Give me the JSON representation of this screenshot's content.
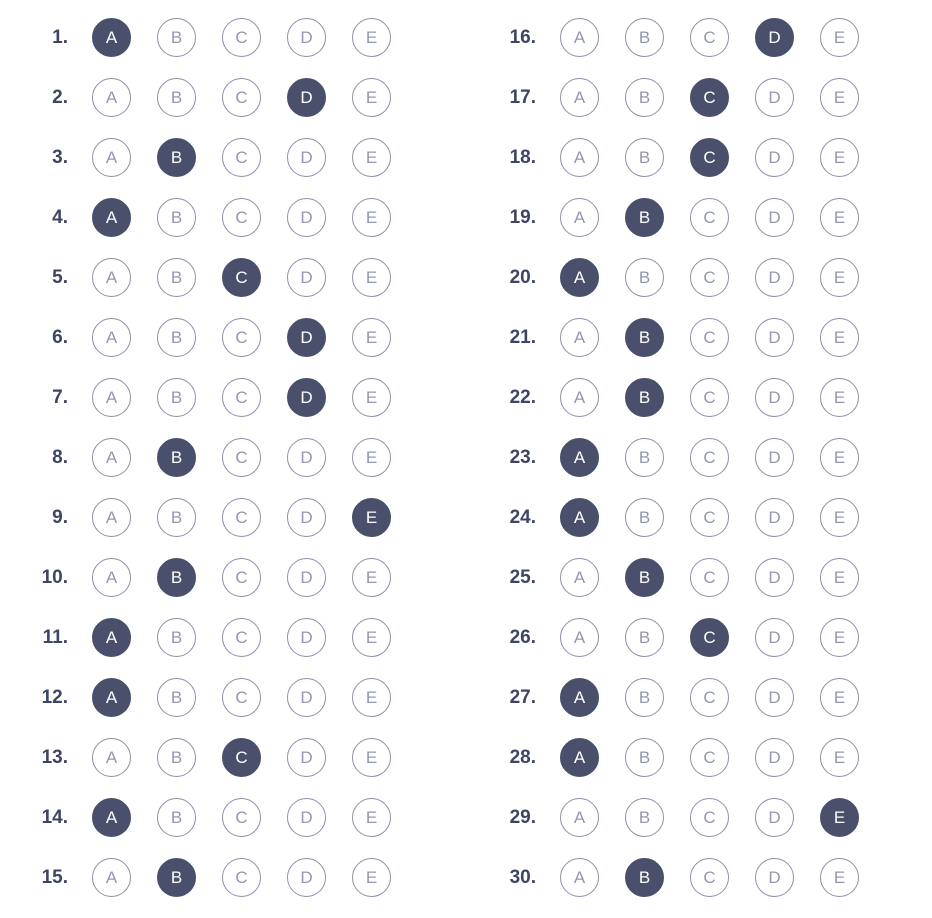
{
  "answer_sheet": {
    "choice_letters": [
      "A",
      "B",
      "C",
      "D",
      "E"
    ],
    "columns": [
      {
        "questions": [
          {
            "label": "1.",
            "selected": "A"
          },
          {
            "label": "2.",
            "selected": "D"
          },
          {
            "label": "3.",
            "selected": "B"
          },
          {
            "label": "4.",
            "selected": "A"
          },
          {
            "label": "5.",
            "selected": "C"
          },
          {
            "label": "6.",
            "selected": "D"
          },
          {
            "label": "7.",
            "selected": "D"
          },
          {
            "label": "8.",
            "selected": "B"
          },
          {
            "label": "9.",
            "selected": "E"
          },
          {
            "label": "10.",
            "selected": "B"
          },
          {
            "label": "11.",
            "selected": "A"
          },
          {
            "label": "12.",
            "selected": "A"
          },
          {
            "label": "13.",
            "selected": "C"
          },
          {
            "label": "14.",
            "selected": "A"
          },
          {
            "label": "15.",
            "selected": "B"
          }
        ]
      },
      {
        "questions": [
          {
            "label": "16.",
            "selected": "D"
          },
          {
            "label": "17.",
            "selected": "C"
          },
          {
            "label": "18.",
            "selected": "C"
          },
          {
            "label": "19.",
            "selected": "B"
          },
          {
            "label": "20.",
            "selected": "A"
          },
          {
            "label": "21.",
            "selected": "B"
          },
          {
            "label": "22.",
            "selected": "B"
          },
          {
            "label": "23.",
            "selected": "A"
          },
          {
            "label": "24.",
            "selected": "A"
          },
          {
            "label": "25.",
            "selected": "B"
          },
          {
            "label": "26.",
            "selected": "C"
          },
          {
            "label": "27.",
            "selected": "A"
          },
          {
            "label": "28.",
            "selected": "A"
          },
          {
            "label": "29.",
            "selected": "E"
          },
          {
            "label": "30.",
            "selected": "B"
          }
        ]
      }
    ],
    "colors": {
      "filled": "#4a4f6b",
      "outline": "#8d90a8",
      "number": "#3d4562"
    }
  }
}
